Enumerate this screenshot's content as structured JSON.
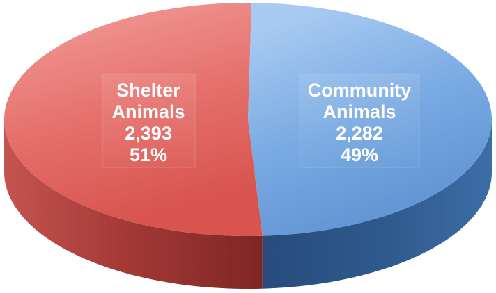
{
  "chart_data": {
    "type": "pie",
    "style": "3d",
    "title": "",
    "slices": [
      {
        "name": "Shelter Animals",
        "label_lines": [
          "Shelter",
          "Animals"
        ],
        "value": 2393,
        "value_text": "2,393",
        "percent_text": "51%",
        "color": "#e05a5a"
      },
      {
        "name": "Community Animals",
        "label_lines": [
          "Community",
          "Animals"
        ],
        "value": 2282,
        "value_text": "2,282",
        "percent_text": "49%",
        "color": "#5b9bd5"
      }
    ],
    "legend": "none"
  }
}
